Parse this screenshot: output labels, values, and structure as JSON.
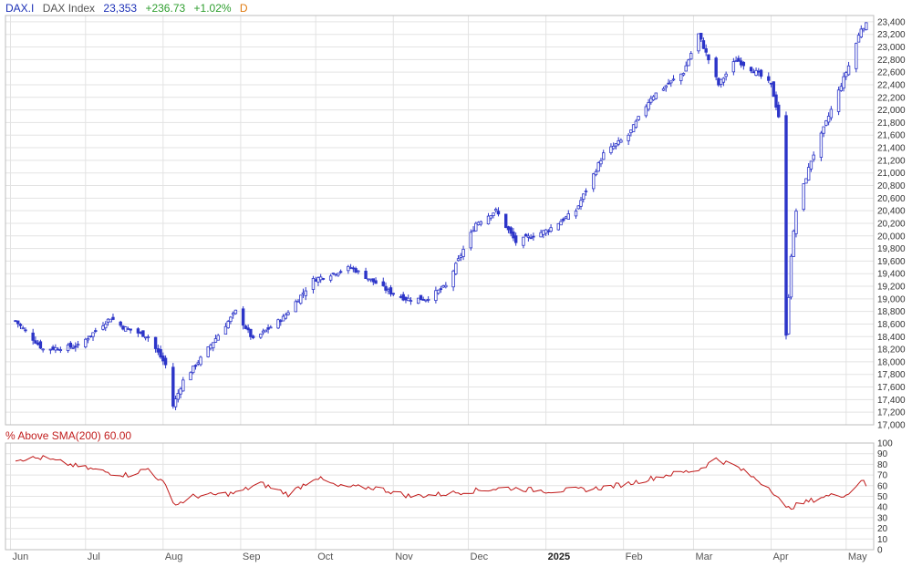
{
  "header": {
    "symbol": "DAX.I",
    "name": "DAX Index",
    "price": "23,353",
    "change": "+236.73",
    "change_pct": "+1.02%",
    "period": "D"
  },
  "colors": {
    "candle": "#2c35c8",
    "indicator": "#c01818",
    "grid": "#e3e3e3",
    "frame": "#bdbdbd"
  },
  "chart_data": [
    {
      "type": "candlestick",
      "title": "",
      "ylim": [
        17000,
        23500
      ],
      "y_ticks": [
        "17,000",
        "17,200",
        "17,400",
        "17,600",
        "17,800",
        "18,000",
        "18,200",
        "18,400",
        "18,600",
        "18,800",
        "19,000",
        "19,200",
        "19,400",
        "19,600",
        "19,800",
        "20,000",
        "20,200",
        "20,400",
        "20,600",
        "20,800",
        "21,000",
        "21,200",
        "21,400",
        "21,600",
        "21,800",
        "22,000",
        "22,200",
        "22,400",
        "22,600",
        "22,800",
        "23,000",
        "23,200",
        "23,400"
      ],
      "x_labels": [
        "Jun",
        "Jul",
        "Aug",
        "Sep",
        "Oct",
        "Nov",
        "Dec",
        "2025",
        "Feb",
        "Mar",
        "Apr",
        "May"
      ],
      "anchor_dates": [
        "2024-06-03",
        "2024-06-14",
        "2024-06-28",
        "2024-07-11",
        "2024-07-16",
        "2024-07-26",
        "2024-08-02",
        "2024-08-05",
        "2024-08-09",
        "2024-08-16",
        "2024-08-30",
        "2024-09-06",
        "2024-09-18",
        "2024-09-30",
        "2024-10-15",
        "2024-10-31",
        "2024-11-06",
        "2024-11-14",
        "2024-11-22",
        "2024-12-04",
        "2024-12-12",
        "2024-12-20",
        "2025-01-02",
        "2025-01-13",
        "2025-01-24",
        "2025-02-03",
        "2025-02-12",
        "2025-02-25",
        "2025-03-03",
        "2025-03-06",
        "2025-03-11",
        "2025-03-18",
        "2025-03-26",
        "2025-04-01",
        "2025-04-04",
        "2025-04-07",
        "2025-04-09",
        "2025-04-11",
        "2025-04-17",
        "2025-04-25",
        "2025-05-02",
        "2025-05-07",
        "2025-05-09"
      ],
      "anchor_closes": [
        18650,
        18200,
        18250,
        18700,
        18550,
        18400,
        17950,
        17300,
        17700,
        18050,
        18800,
        18350,
        18700,
        19300,
        19500,
        19100,
        19000,
        19000,
        19200,
        20200,
        20400,
        19900,
        20100,
        20400,
        21300,
        21600,
        22200,
        22600,
        23200,
        22900,
        22400,
        22800,
        22600,
        22400,
        21900,
        18400,
        19700,
        20400,
        21200,
        22000,
        22700,
        23300,
        23353
      ]
    },
    {
      "type": "line",
      "title": "% Above SMA(200) 60.00",
      "series_name": "% Above SMA(200)",
      "ylim": [
        0,
        100
      ],
      "y_ticks": [
        "0",
        "10",
        "20",
        "30",
        "40",
        "50",
        "60",
        "70",
        "80",
        "90",
        "100"
      ],
      "anchor_dates": [
        "2024-06-03",
        "2024-06-14",
        "2024-06-28",
        "2024-07-11",
        "2024-07-18",
        "2024-07-26",
        "2024-08-02",
        "2024-08-06",
        "2024-08-13",
        "2024-08-30",
        "2024-09-09",
        "2024-09-20",
        "2024-10-01",
        "2024-10-10",
        "2024-10-25",
        "2024-11-08",
        "2024-11-20",
        "2024-12-02",
        "2024-12-16",
        "2025-01-02",
        "2025-01-20",
        "2025-02-03",
        "2025-02-18",
        "2025-03-03",
        "2025-03-10",
        "2025-03-18",
        "2025-04-01",
        "2025-04-07",
        "2025-04-09",
        "2025-04-22",
        "2025-05-02",
        "2025-05-07",
        "2025-05-09"
      ],
      "anchor_values": [
        85,
        86,
        78,
        72,
        70,
        76,
        60,
        42,
        50,
        53,
        62,
        52,
        68,
        59,
        58,
        50,
        52,
        55,
        58,
        55,
        57,
        62,
        70,
        75,
        85,
        78,
        57,
        38,
        40,
        50,
        52,
        66,
        60
      ]
    }
  ]
}
